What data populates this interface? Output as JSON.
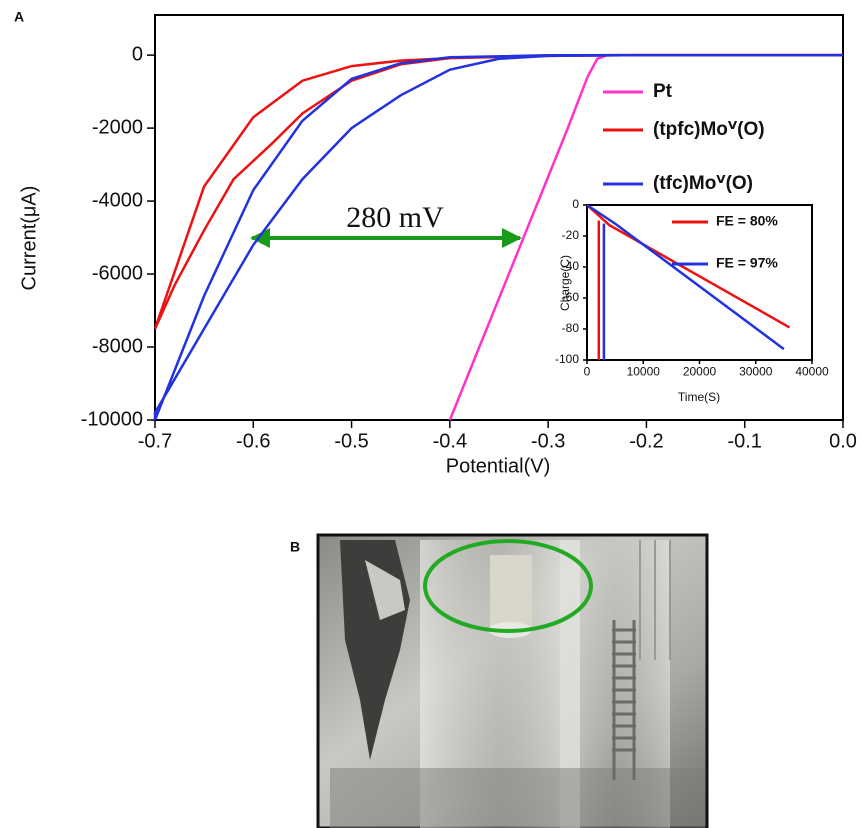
{
  "panel_labels": [
    "A",
    "B"
  ],
  "chart_data": [
    {
      "type": "line",
      "x_label": "Potential(V)",
      "y_label": "Current(μA)",
      "annotation": "280 mV",
      "xlim": [
        -0.7,
        0.0
      ],
      "ylim": [
        -10000,
        1100
      ],
      "xticks": [
        -0.7,
        -0.6,
        -0.5,
        -0.4,
        -0.3,
        -0.2,
        -0.1,
        {
          "value": 0,
          "label": "0.0"
        }
      ],
      "yticks": [
        0,
        -2000,
        -4000,
        -6000,
        -8000,
        -10000
      ],
      "series": [
        {
          "name": "Pt",
          "color": "#ff33cc",
          "x": [
            -0.4,
            -0.37,
            -0.34,
            -0.31,
            -0.28,
            -0.26,
            -0.25,
            -0.24,
            -0.2,
            -0.1,
            0.0
          ],
          "values": [
            -10000,
            -8000,
            -6000,
            -4000,
            -2000,
            -600,
            -100,
            0,
            0,
            0,
            0
          ]
        },
        {
          "name": "(tpfc)Moⱽ(O)",
          "color": "#ee1111",
          "x": [
            0.0,
            -0.2,
            -0.3,
            -0.4,
            -0.45,
            -0.5,
            -0.55,
            -0.6,
            -0.65,
            -0.7,
            -0.68,
            -0.65,
            -0.62,
            -0.58,
            -0.55,
            -0.5,
            -0.45,
            -0.4,
            -0.3,
            -0.2,
            0.0
          ],
          "values": [
            0,
            0,
            -20,
            -80,
            -150,
            -300,
            -700,
            -1700,
            -3600,
            -7500,
            -6300,
            -4800,
            -3400,
            -2400,
            -1600,
            -700,
            -250,
            -80,
            -10,
            0,
            0
          ]
        },
        {
          "name": "(tfc)Moⱽ(O)",
          "color": "#2233dd",
          "x": [
            0.0,
            -0.2,
            -0.3,
            -0.35,
            -0.4,
            -0.45,
            -0.5,
            -0.55,
            -0.6,
            -0.65,
            -0.7,
            -0.7,
            -0.65,
            -0.6,
            -0.55,
            -0.5,
            -0.45,
            -0.4,
            -0.3,
            -0.2,
            0.0
          ],
          "values": [
            0,
            0,
            -20,
            -100,
            -400,
            -1100,
            -2000,
            -3400,
            -5200,
            -7500,
            -9800,
            -10000,
            -6600,
            -3700,
            -1800,
            -650,
            -220,
            -60,
            -5,
            0,
            0
          ]
        }
      ]
    },
    {
      "type": "line",
      "x_label": "Time(S)",
      "y_label": "Charge(C)",
      "xlim": [
        0,
        40000
      ],
      "ylim": [
        -100,
        0
      ],
      "xticks": [
        0,
        10000,
        20000,
        30000,
        40000
      ],
      "yticks": [
        0,
        -20,
        -40,
        -60,
        -80,
        -100
      ],
      "series": [
        {
          "name": "FE = 80%",
          "color": "#ee1111",
          "x": [
            2100,
            2100,
            0,
            0,
            4000,
            36000
          ],
          "values": [
            -100,
            -10,
            null,
            0,
            -13,
            -79
          ]
        },
        {
          "name": "FE = 97%",
          "color": "#2233dd",
          "x": [
            3000,
            3000,
            0,
            0,
            5000,
            35000
          ],
          "values": [
            -100,
            -12,
            null,
            0,
            -12,
            -93
          ]
        }
      ]
    }
  ]
}
